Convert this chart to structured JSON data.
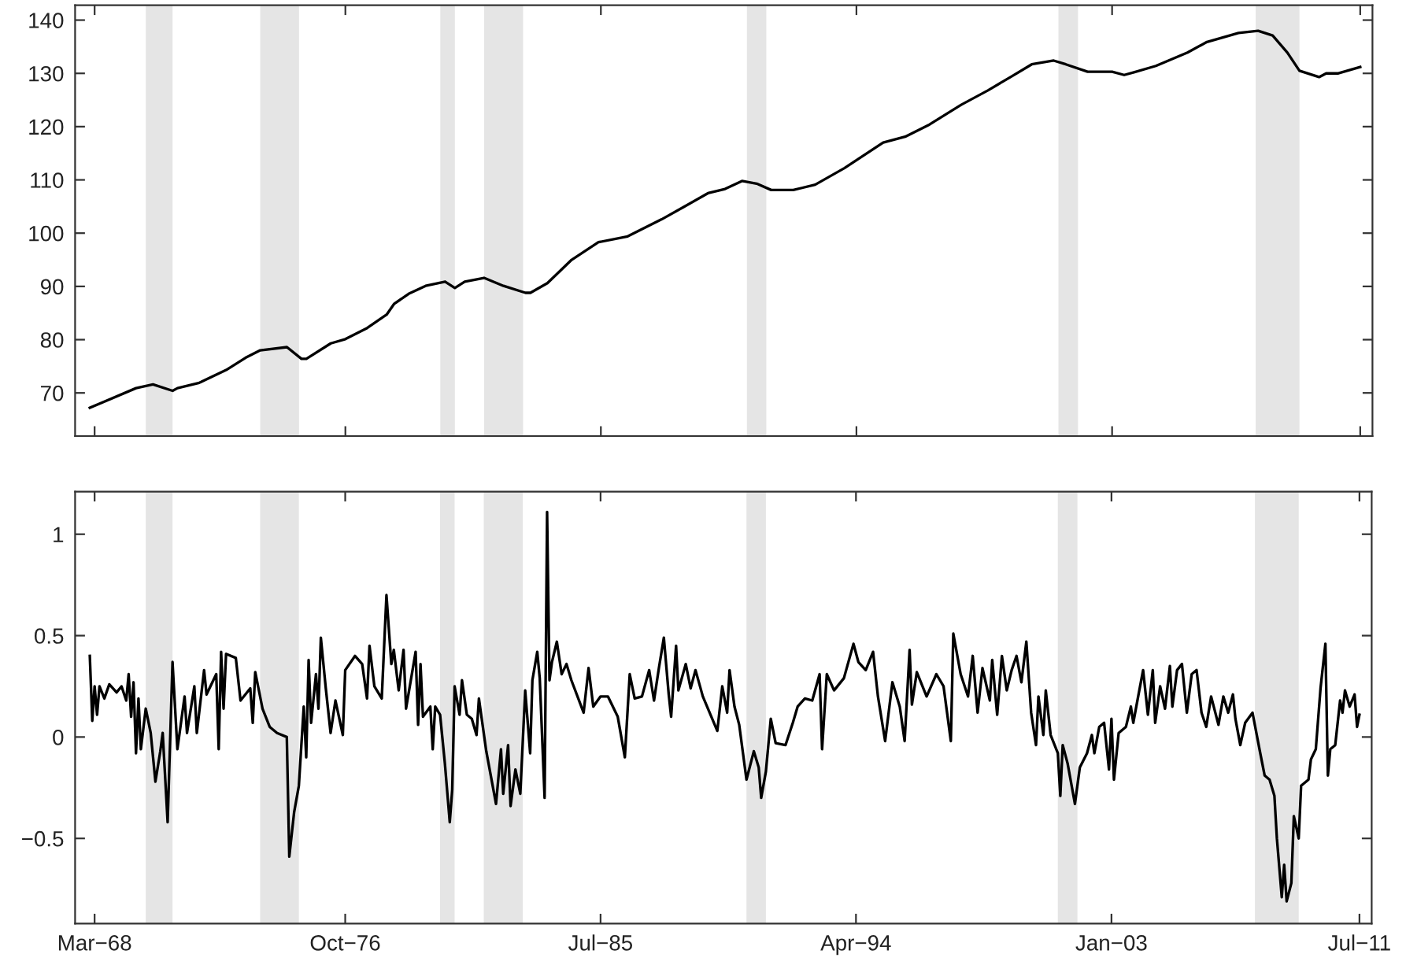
{
  "chart_data": [
    {
      "type": "line",
      "color": "#000000",
      "x": [
        "1968-01",
        "1969-08",
        "1970-03",
        "1970-11",
        "1971-01",
        "1971-10",
        "1972-09",
        "1973-05",
        "1973-11",
        "1974-10",
        "1975-04",
        "1975-06",
        "1976-04",
        "1976-10",
        "1977-07",
        "1978-03",
        "1978-06",
        "1978-12",
        "1979-07",
        "1980-03",
        "1980-07",
        "1980-11",
        "1981-07",
        "1982-03",
        "1982-12",
        "1983-02",
        "1983-09",
        "1984-07",
        "1985-06",
        "1986-06",
        "1987-08",
        "1988-05",
        "1989-03",
        "1989-10",
        "1990-05",
        "1990-11",
        "1991-05",
        "1992-02",
        "1992-11",
        "1993-11",
        "1995-03",
        "1995-12",
        "1996-10",
        "1997-11",
        "1998-10",
        "1999-08",
        "2000-04",
        "2001-01",
        "2001-06",
        "2002-03",
        "2003-01",
        "2003-06",
        "2003-10",
        "2004-07",
        "2005-08",
        "2006-04",
        "2007-05",
        "2008-01",
        "2008-07",
        "2009-01",
        "2009-06",
        "2010-02",
        "2010-05",
        "2010-10",
        "2011-07"
      ],
      "values": [
        67.2,
        70.9,
        71.6,
        70.4,
        70.9,
        71.9,
        74.3,
        76.6,
        78.0,
        78.6,
        76.4,
        76.4,
        79.3,
        80.1,
        82.2,
        84.7,
        86.7,
        88.6,
        90.1,
        90.9,
        89.7,
        90.9,
        91.6,
        90.1,
        88.8,
        88.8,
        90.6,
        95.0,
        98.3,
        99.4,
        102.6,
        104.9,
        107.5,
        108.3,
        109.8,
        109.3,
        108.1,
        108.1,
        109.1,
        112.2,
        117.0,
        118.1,
        120.4,
        124.1,
        126.8,
        129.5,
        131.7,
        132.4,
        131.7,
        130.3,
        130.3,
        129.7,
        130.2,
        131.4,
        133.9,
        135.9,
        137.6,
        138.0,
        137.1,
        133.9,
        130.5,
        129.3,
        130.0,
        130.0,
        131.2
      ],
      "xlim": [
        "1967-07",
        "2011-12"
      ],
      "ylim": [
        61.9,
        142.8
      ],
      "xticks": [
        {
          "value": "1968-03",
          "label": null
        },
        {
          "value": "1976-10",
          "label": null
        },
        {
          "value": "1985-07",
          "label": null
        },
        {
          "value": "1994-04",
          "label": null
        },
        {
          "value": "2003-01",
          "label": null
        },
        {
          "value": "2011-07",
          "label": null
        }
      ],
      "yticks": [
        70,
        80,
        90,
        100,
        110,
        120,
        130,
        140
      ],
      "tick_labels": "y",
      "bands": [
        {
          "axis": "x",
          "from": "1969-12",
          "to": "1970-11",
          "color": "#e5e5e5"
        },
        {
          "axis": "x",
          "from": "1973-11",
          "to": "1975-03",
          "color": "#e5e5e5"
        },
        {
          "axis": "x",
          "from": "1980-01",
          "to": "1980-07",
          "color": "#e5e5e5"
        },
        {
          "axis": "x",
          "from": "1981-07",
          "to": "1982-11",
          "color": "#e5e5e5"
        },
        {
          "axis": "x",
          "from": "1990-07",
          "to": "1991-03",
          "color": "#e5e5e5"
        },
        {
          "axis": "x",
          "from": "2001-03",
          "to": "2001-11",
          "color": "#e5e5e5"
        },
        {
          "axis": "x",
          "from": "2007-12",
          "to": "2009-06",
          "color": "#e5e5e5"
        }
      ]
    },
    {
      "type": "line",
      "color": "#000000",
      "x": [
        "1968-01",
        "1968-02",
        "1968-03",
        "1968-04",
        "1968-05",
        "1968-07",
        "1968-09",
        "1968-12",
        "1969-02",
        "1969-04",
        "1969-05",
        "1969-06",
        "1969-07",
        "1969-08",
        "1969-09",
        "1969-10",
        "1969-12",
        "1970-02",
        "1970-04",
        "1970-06",
        "1970-07",
        "1970-09",
        "1970-11",
        "1971-01",
        "1971-04",
        "1971-05",
        "1971-08",
        "1971-09",
        "1971-12",
        "1972-01",
        "1972-05",
        "1972-06",
        "1972-07",
        "1972-08",
        "1972-09",
        "1973-01",
        "1973-03",
        "1973-07",
        "1973-08",
        "1973-09",
        "1973-12",
        "1974-03",
        "1974-06",
        "1974-10",
        "1974-11",
        "1975-01",
        "1975-03",
        "1975-05",
        "1975-06",
        "1975-07",
        "1975-08",
        "1975-10",
        "1975-11",
        "1975-12",
        "1976-02",
        "1976-04",
        "1976-06",
        "1976-09",
        "1976-10",
        "1977-02",
        "1977-05",
        "1977-07",
        "1977-08",
        "1977-10",
        "1978-01",
        "1978-03",
        "1978-05",
        "1978-06",
        "1978-08",
        "1978-10",
        "1978-11",
        "1979-03",
        "1979-04",
        "1979-05",
        "1979-06",
        "1979-09",
        "1979-10",
        "1979-11",
        "1980-01",
        "1980-03",
        "1980-05",
        "1980-06",
        "1980-07",
        "1980-09",
        "1980-10",
        "1980-12",
        "1981-02",
        "1981-04",
        "1981-05",
        "1981-08",
        "1981-12",
        "1982-02",
        "1982-03",
        "1982-05",
        "1982-06",
        "1982-08",
        "1982-10",
        "1982-12",
        "1983-02",
        "1983-03",
        "1983-05",
        "1983-06",
        "1983-08",
        "1983-09",
        "1983-10",
        "1983-11",
        "1984-01",
        "1984-03",
        "1984-05",
        "1984-07",
        "1984-12",
        "1985-02",
        "1985-04",
        "1985-07",
        "1985-10",
        "1986-02",
        "1986-05",
        "1986-07",
        "1986-09",
        "1986-12",
        "1987-03",
        "1987-05",
        "1987-07",
        "1987-09",
        "1987-11",
        "1987-12",
        "1988-02",
        "1988-03",
        "1988-06",
        "1988-08",
        "1988-10",
        "1989-01",
        "1989-07",
        "1989-09",
        "1989-11",
        "1989-12",
        "1990-02",
        "1990-04",
        "1990-07",
        "1990-10",
        "1990-12",
        "1991-01",
        "1991-03",
        "1991-05",
        "1991-07",
        "1991-11",
        "1992-02",
        "1992-04",
        "1992-07",
        "1992-10",
        "1993-01",
        "1993-02",
        "1993-04",
        "1993-07",
        "1993-11",
        "1994-03",
        "1994-05",
        "1994-08",
        "1994-11",
        "1995-01",
        "1995-04",
        "1995-07",
        "1995-10",
        "1995-12",
        "1996-02",
        "1996-03",
        "1996-05",
        "1996-09",
        "1997-01",
        "1997-04",
        "1997-07",
        "1997-08",
        "1997-11",
        "1998-02",
        "1998-04",
        "1998-06",
        "1998-08",
        "1998-11",
        "1998-12",
        "1999-02",
        "1999-04",
        "1999-06",
        "1999-08",
        "1999-10",
        "1999-12",
        "2000-02",
        "2000-04",
        "2000-06",
        "2000-07",
        "2000-09",
        "2000-10",
        "2000-12",
        "2001-03",
        "2001-04",
        "2001-05",
        "2001-07",
        "2001-10",
        "2001-12",
        "2002-03",
        "2002-05",
        "2002-06",
        "2002-08",
        "2002-10",
        "2002-12",
        "2003-01",
        "2003-02",
        "2003-04",
        "2003-07",
        "2003-09",
        "2003-10",
        "2003-12",
        "2004-02",
        "2004-04",
        "2004-06",
        "2004-07",
        "2004-09",
        "2004-11",
        "2005-01",
        "2005-02",
        "2005-04",
        "2005-06",
        "2005-08",
        "2005-10",
        "2005-12",
        "2006-02",
        "2006-04",
        "2006-06",
        "2006-09",
        "2006-11",
        "2007-01",
        "2007-03",
        "2007-04",
        "2007-06",
        "2007-08",
        "2007-11",
        "2008-02",
        "2008-04",
        "2008-06",
        "2008-08",
        "2008-09",
        "2008-11",
        "2008-12",
        "2009-01",
        "2009-03",
        "2009-04",
        "2009-06",
        "2009-07",
        "2009-10",
        "2009-11",
        "2010-01",
        "2010-03",
        "2010-05",
        "2010-06",
        "2010-07",
        "2010-09",
        "2010-11",
        "2010-12",
        "2011-01",
        "2011-03",
        "2011-05",
        "2011-06",
        "2011-07"
      ],
      "values": [
        0.4,
        0.08,
        0.25,
        0.11,
        0.25,
        0.19,
        0.26,
        0.22,
        0.25,
        0.18,
        0.31,
        0.1,
        0.27,
        -0.08,
        0.19,
        -0.06,
        0.14,
        0.02,
        -0.22,
        -0.07,
        0.02,
        -0.42,
        0.37,
        -0.06,
        0.2,
        0.02,
        0.25,
        0.02,
        0.33,
        0.21,
        0.31,
        -0.06,
        0.42,
        0.14,
        0.41,
        0.39,
        0.18,
        0.24,
        0.07,
        0.32,
        0.14,
        0.05,
        0.02,
        0.0,
        -0.59,
        -0.37,
        -0.24,
        0.15,
        -0.1,
        0.38,
        0.07,
        0.31,
        0.14,
        0.49,
        0.24,
        0.02,
        0.18,
        0.01,
        0.33,
        0.4,
        0.36,
        0.19,
        0.45,
        0.25,
        0.19,
        0.7,
        0.36,
        0.43,
        0.23,
        0.43,
        0.14,
        0.42,
        0.06,
        0.36,
        0.1,
        0.15,
        -0.06,
        0.15,
        0.11,
        -0.13,
        -0.42,
        -0.26,
        0.25,
        0.11,
        0.28,
        0.11,
        0.09,
        0.01,
        0.19,
        -0.07,
        -0.33,
        -0.06,
        -0.28,
        -0.04,
        -0.34,
        -0.16,
        -0.28,
        0.23,
        -0.08,
        0.28,
        0.42,
        0.29,
        -0.3,
        1.11,
        0.28,
        0.37,
        0.47,
        0.31,
        0.36,
        0.28,
        0.12,
        0.34,
        0.15,
        0.2,
        0.2,
        0.1,
        -0.1,
        0.31,
        0.19,
        0.2,
        0.33,
        0.18,
        0.34,
        0.49,
        0.21,
        0.1,
        0.45,
        0.23,
        0.36,
        0.24,
        0.33,
        0.2,
        0.03,
        0.25,
        0.12,
        0.33,
        0.15,
        0.06,
        -0.21,
        -0.07,
        -0.15,
        -0.3,
        -0.17,
        0.09,
        -0.03,
        -0.04,
        0.07,
        0.15,
        0.19,
        0.18,
        0.31,
        -0.06,
        0.31,
        0.23,
        0.29,
        0.46,
        0.37,
        0.33,
        0.42,
        0.2,
        -0.02,
        0.27,
        0.15,
        -0.02,
        0.43,
        0.16,
        0.32,
        0.2,
        0.31,
        0.25,
        -0.02,
        0.51,
        0.31,
        0.2,
        0.4,
        0.12,
        0.34,
        0.18,
        0.38,
        0.11,
        0.4,
        0.23,
        0.33,
        0.4,
        0.27,
        0.47,
        0.12,
        -0.04,
        0.2,
        0.01,
        0.23,
        0.01,
        -0.08,
        -0.29,
        -0.04,
        -0.13,
        -0.33,
        -0.15,
        -0.08,
        0.01,
        -0.08,
        0.05,
        0.07,
        -0.16,
        0.09,
        -0.21,
        0.02,
        0.05,
        0.15,
        0.07,
        0.2,
        0.33,
        0.11,
        0.33,
        0.07,
        0.25,
        0.14,
        0.35,
        0.15,
        0.33,
        0.36,
        0.12,
        0.31,
        0.33,
        0.12,
        0.05,
        0.2,
        0.06,
        0.2,
        0.12,
        0.21,
        0.09,
        -0.04,
        0.07,
        0.12,
        -0.07,
        -0.19,
        -0.21,
        -0.29,
        -0.5,
        -0.79,
        -0.63,
        -0.81,
        -0.72,
        -0.39,
        -0.5,
        -0.24,
        -0.21,
        -0.11,
        -0.06,
        0.24,
        0.46,
        -0.19,
        -0.06,
        -0.04,
        0.18,
        0.12,
        0.23,
        0.15,
        0.21,
        0.05,
        0.11
      ],
      "xlim": [
        "1967-07",
        "2011-12"
      ],
      "ylim": [
        -0.92,
        1.21
      ],
      "xticks": [
        {
          "value": "1968-03",
          "label": "Mar−68"
        },
        {
          "value": "1976-10",
          "label": "Oct−76"
        },
        {
          "value": "1985-07",
          "label": "Jul−85"
        },
        {
          "value": "1994-04",
          "label": "Apr−94"
        },
        {
          "value": "2003-01",
          "label": "Jan−03"
        },
        {
          "value": "2011-07",
          "label": "Jul−11"
        }
      ],
      "yticks": [
        {
          "value": -0.5,
          "label": "−0.5"
        },
        0,
        0.5,
        1
      ],
      "bands": [
        {
          "axis": "x",
          "from": "1969-12",
          "to": "1970-11",
          "color": "#e5e5e5"
        },
        {
          "axis": "x",
          "from": "1973-11",
          "to": "1975-03",
          "color": "#e5e5e5"
        },
        {
          "axis": "x",
          "from": "1980-01",
          "to": "1980-07",
          "color": "#e5e5e5"
        },
        {
          "axis": "x",
          "from": "1981-07",
          "to": "1982-11",
          "color": "#e5e5e5"
        },
        {
          "axis": "x",
          "from": "1990-07",
          "to": "1991-03",
          "color": "#e5e5e5"
        },
        {
          "axis": "x",
          "from": "2001-03",
          "to": "2001-11",
          "color": "#e5e5e5"
        },
        {
          "axis": "x",
          "from": "2007-12",
          "to": "2009-06",
          "color": "#e5e5e5"
        }
      ]
    }
  ]
}
